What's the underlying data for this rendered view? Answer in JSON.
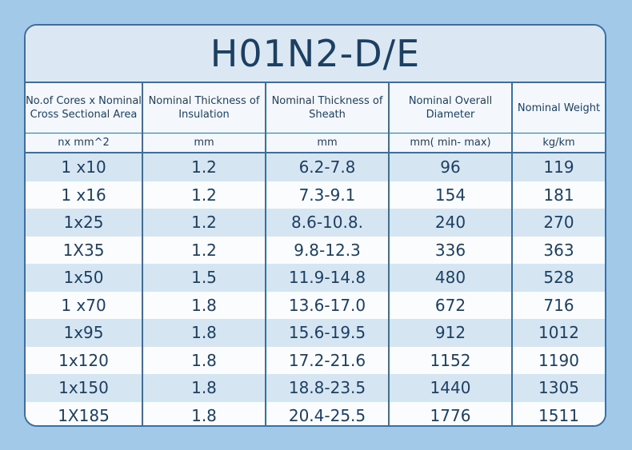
{
  "title": "H01N2-D/E",
  "columns": [
    {
      "header": "No.of Cores x Nominal Cross Sectional Area",
      "unit": "nx mm^2"
    },
    {
      "header": "Nominal Thickness of Insulation",
      "unit": "mm"
    },
    {
      "header": "Nominal Thickness of Sheath",
      "unit": "mm"
    },
    {
      "header": "Nominal Overall Diameter",
      "unit": "mm( min- max)"
    },
    {
      "header": "Nominal Weight",
      "unit": "kg/km"
    }
  ],
  "rows": [
    [
      "1 x10",
      "1.2",
      "6.2-7.8",
      "96",
      "119"
    ],
    [
      "1 x16",
      "1.2",
      "7.3-9.1",
      "154",
      "181"
    ],
    [
      "1x25",
      "1.2",
      "8.6-10.8.",
      "240",
      "270"
    ],
    [
      "1X35",
      "1.2",
      "9.8-12.3",
      "336",
      "363"
    ],
    [
      "1x50",
      "1.5",
      "11.9-14.8",
      "480",
      "528"
    ],
    [
      "1 x70",
      "1.8",
      "13.6-17.0",
      "672",
      "716"
    ],
    [
      "1x95",
      "1.8",
      "15.6-19.5",
      "912",
      "1012"
    ],
    [
      "1x120",
      "1.8",
      "17.2-21.6",
      "1152",
      "1190"
    ],
    [
      "1x150",
      "1.8",
      "18.8-23.5",
      "1440",
      "1305"
    ],
    [
      "1X185",
      "1.8",
      "20.4-25.5",
      "1776",
      "1511"
    ]
  ]
}
